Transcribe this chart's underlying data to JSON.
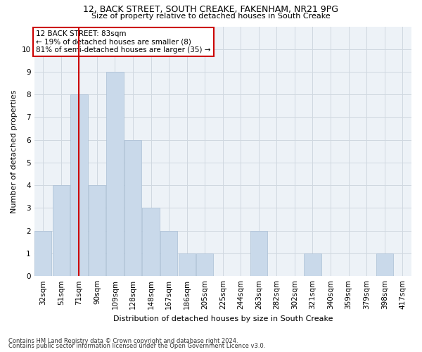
{
  "title1": "12, BACK STREET, SOUTH CREAKE, FAKENHAM, NR21 9PG",
  "title2": "Size of property relative to detached houses in South Creake",
  "xlabel": "Distribution of detached houses by size in South Creake",
  "ylabel": "Number of detached properties",
  "footnote1": "Contains HM Land Registry data © Crown copyright and database right 2024.",
  "footnote2": "Contains public sector information licensed under the Open Government Licence v3.0.",
  "annotation_line1": "12 BACK STREET: 83sqm",
  "annotation_line2": "← 19% of detached houses are smaller (8)",
  "annotation_line3": "81% of semi-detached houses are larger (35) →",
  "bar_labels": [
    "32sqm",
    "51sqm",
    "71sqm",
    "90sqm",
    "109sqm",
    "128sqm",
    "148sqm",
    "167sqm",
    "186sqm",
    "205sqm",
    "225sqm",
    "244sqm",
    "263sqm",
    "282sqm",
    "302sqm",
    "321sqm",
    "340sqm",
    "359sqm",
    "379sqm",
    "398sqm",
    "417sqm"
  ],
  "bar_values": [
    2,
    4,
    8,
    4,
    9,
    6,
    3,
    2,
    1,
    1,
    0,
    0,
    2,
    0,
    0,
    1,
    0,
    0,
    0,
    1,
    0
  ],
  "bar_color": "#c9d9ea",
  "bar_edge_color": "#aabfd4",
  "highlight_bar_index": 2,
  "highlight_color": "#cc0000",
  "ylim": [
    0,
    11
  ],
  "yticks": [
    0,
    1,
    2,
    3,
    4,
    5,
    6,
    7,
    8,
    9,
    10,
    11
  ],
  "grid_color": "#d0d8e0",
  "bg_color": "#edf2f7",
  "annotation_box_color": "#cc0000",
  "title1_fontsize": 9,
  "title2_fontsize": 8,
  "ylabel_fontsize": 8,
  "xlabel_fontsize": 8,
  "tick_fontsize": 7.5,
  "footnote_fontsize": 6,
  "annotation_fontsize": 7.5
}
